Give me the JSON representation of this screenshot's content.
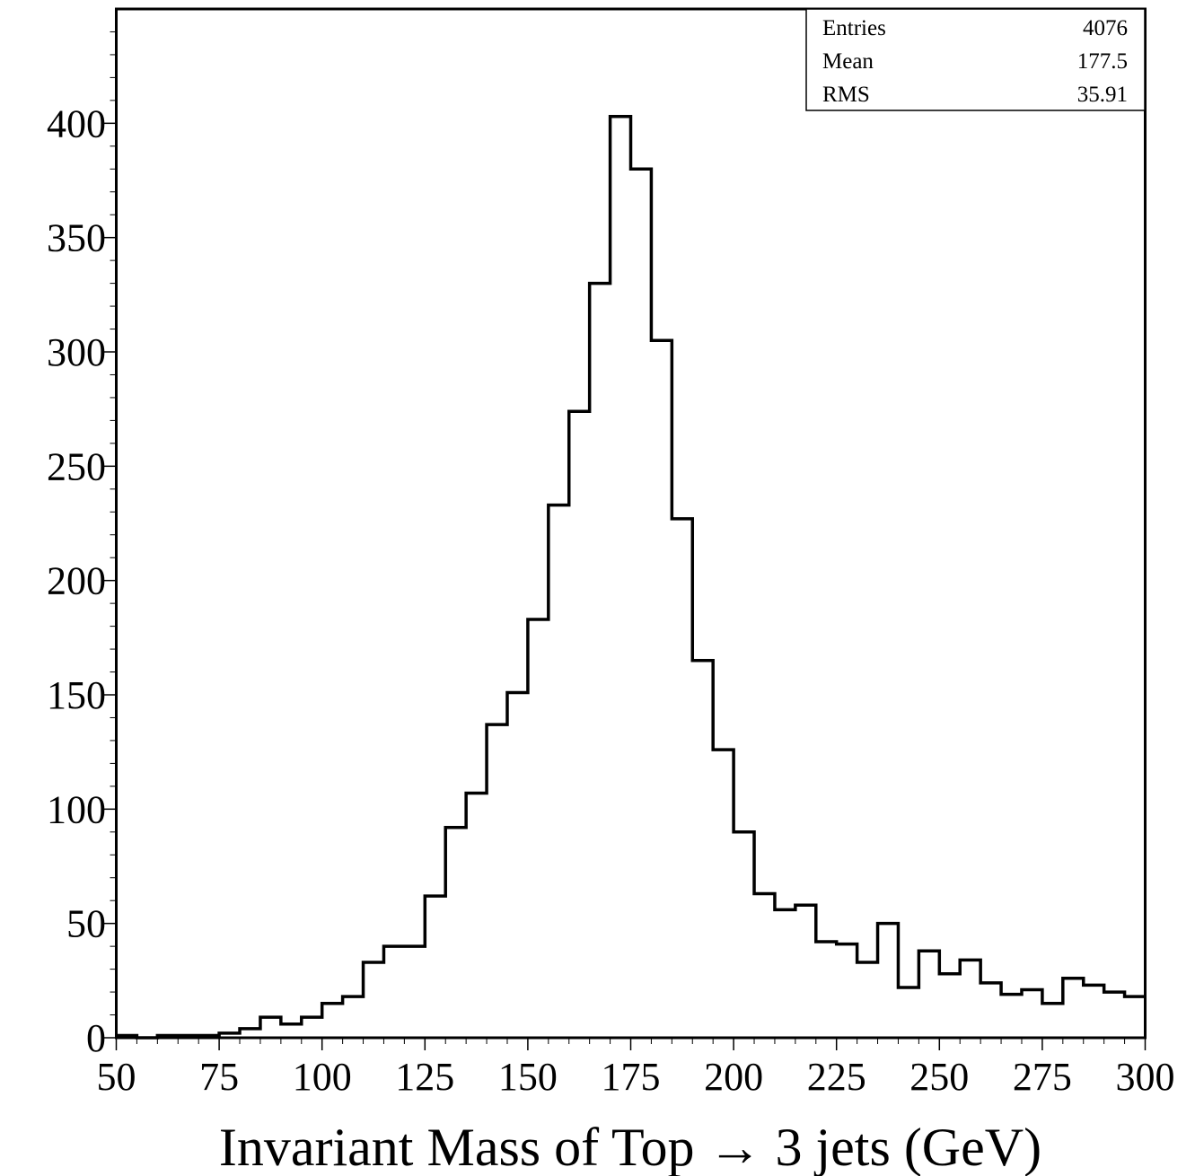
{
  "chart_data": {
    "type": "bar",
    "histogram": true,
    "title": "",
    "xlabel": "Invariant Mass of Top → 3 jets (GeV)",
    "ylabel": "",
    "xlim": [
      50,
      300
    ],
    "ylim": [
      0,
      450
    ],
    "bin_width": 5,
    "bin_edges_start": 50,
    "x_ticks": [
      50,
      75,
      100,
      125,
      150,
      175,
      200,
      225,
      250,
      275,
      300
    ],
    "x_tick_labels": [
      "50",
      "75",
      "100",
      "125",
      "150",
      "175",
      "200",
      "225",
      "250",
      "275",
      "300"
    ],
    "y_ticks": [
      0,
      50,
      100,
      150,
      200,
      250,
      300,
      350,
      400
    ],
    "y_tick_labels": [
      "0",
      "50",
      "100",
      "150",
      "200",
      "250",
      "300",
      "350",
      "400"
    ],
    "grid": false,
    "values": [
      1,
      0,
      1,
      1,
      1,
      2,
      4,
      9,
      6,
      9,
      15,
      18,
      33,
      40,
      40,
      62,
      92,
      107,
      137,
      151,
      183,
      233,
      274,
      330,
      403,
      380,
      305,
      227,
      165,
      126,
      90,
      63,
      56,
      58,
      42,
      41,
      33,
      50,
      22,
      38,
      28,
      34,
      24,
      19,
      21,
      15,
      26,
      23,
      20,
      18
    ],
    "stats_box": {
      "position": "top-right",
      "rows": [
        {
          "label": "Entries",
          "value": "4076"
        },
        {
          "label": "Mean",
          "value": "177.5"
        },
        {
          "label": "RMS",
          "value": "35.91"
        }
      ]
    }
  }
}
